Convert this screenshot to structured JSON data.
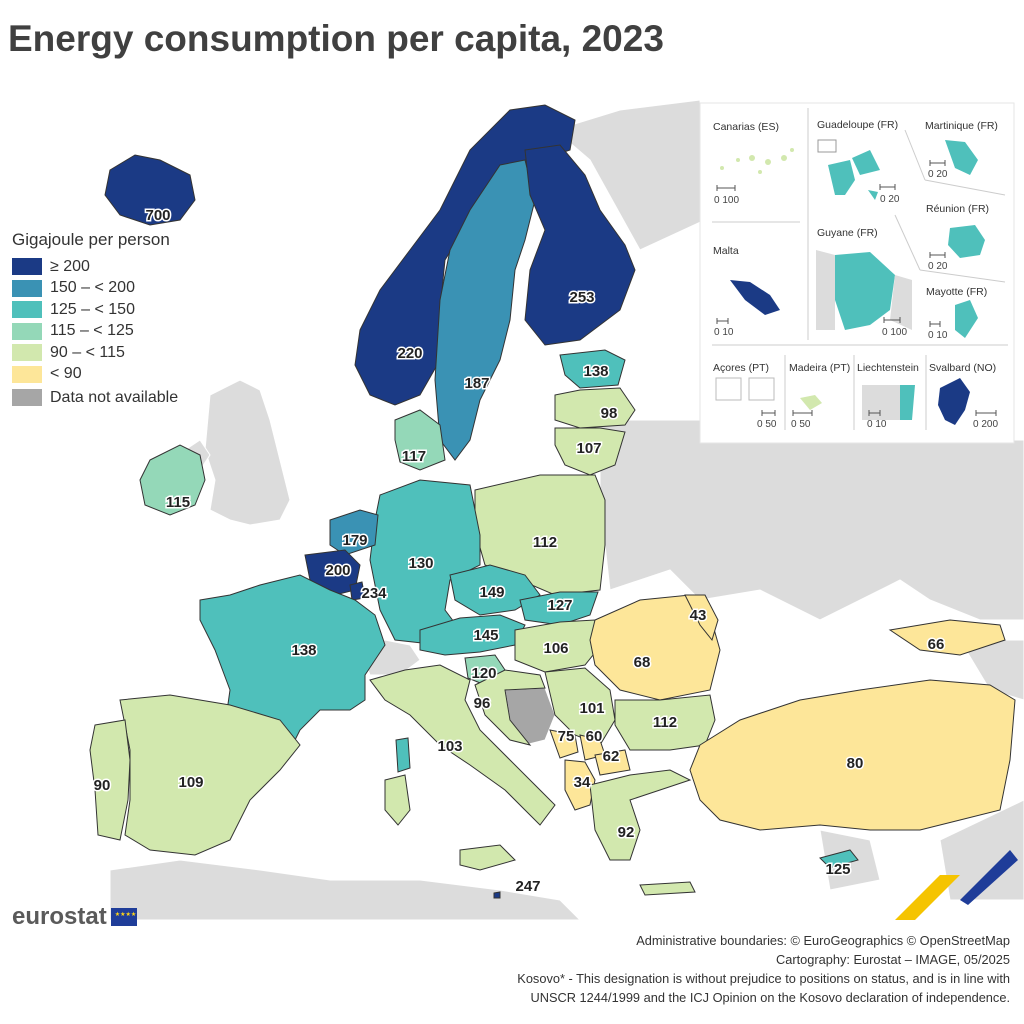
{
  "title": "Energy consumption per capita, 2023",
  "legend": {
    "title": "Gigajoule per person",
    "classes": [
      {
        "label": "≥ 200",
        "color": "#1b3a85"
      },
      {
        "label": "150 – < 200",
        "color": "#3a92b4"
      },
      {
        "label": "125 – < 150",
        "color": "#4fc0bb"
      },
      {
        "label": "115 – < 125",
        "color": "#94d8b8"
      },
      {
        "label": "90 – < 115",
        "color": "#d2e8ae"
      },
      {
        "label": "< 90",
        "color": "#fde699"
      }
    ],
    "na_label": "Data not available",
    "na_color": "#a6a6a6"
  },
  "values": {
    "iceland": "700",
    "norway": "220",
    "sweden": "187",
    "finland": "253",
    "estonia": "138",
    "latvia": "98",
    "lithuania": "107",
    "denmark": "117",
    "ireland": "115",
    "netherlands": "179",
    "belgium": "200",
    "luxembourg": "234",
    "germany": "130",
    "poland": "112",
    "czechia": "149",
    "slovakia": "127",
    "austria": "145",
    "hungary": "106",
    "slovenia": "120",
    "croatia": "96",
    "france": "138",
    "spain": "109",
    "portugal": "90",
    "italy": "103",
    "romania": "68",
    "moldova": "43",
    "serbia": "101",
    "montenegro": "75",
    "kosovo": "60",
    "north_macedonia": "62",
    "albania": "34",
    "bulgaria": "112",
    "greece": "92",
    "turkiye": "80",
    "georgia": "66",
    "cyprus": "125",
    "malta": "247"
  },
  "insets": {
    "canarias": "Canarias (ES)",
    "guadeloupe": "Guadeloupe (FR)",
    "martinique": "Martinique (FR)",
    "reunion": "Réunion (FR)",
    "malta": "Malta",
    "guyane": "Guyane (FR)",
    "mayotte": "Mayotte (FR)",
    "acores": "Açores (PT)",
    "madeira": "Madeira (PT)",
    "liechtenstein": "Liechtenstein",
    "svalbard": "Svalbard (NO)"
  },
  "scales": {
    "canarias": "0  100",
    "guadeloupe": "0  20",
    "martinique": "0  20",
    "reunion": "0  20",
    "malta": "0  10",
    "guyane": "0  100",
    "mayotte": "0 10",
    "acores": "0 50",
    "madeira": "0    50",
    "liechtenstein": "0 10",
    "svalbard": "0     200"
  },
  "branding": {
    "logo": "eurostat"
  },
  "footer": {
    "line1": "Administrative boundaries: © EuroGeographics © OpenStreetMap",
    "line2": "Cartography: Eurostat – IMAGE, 05/2025",
    "line3": "Kosovo* - This designation is without prejudice to positions on status, and is in line with",
    "line4": "UNSCR 1244/1999 and the ICJ Opinion on the Kosovo declaration of independence."
  }
}
